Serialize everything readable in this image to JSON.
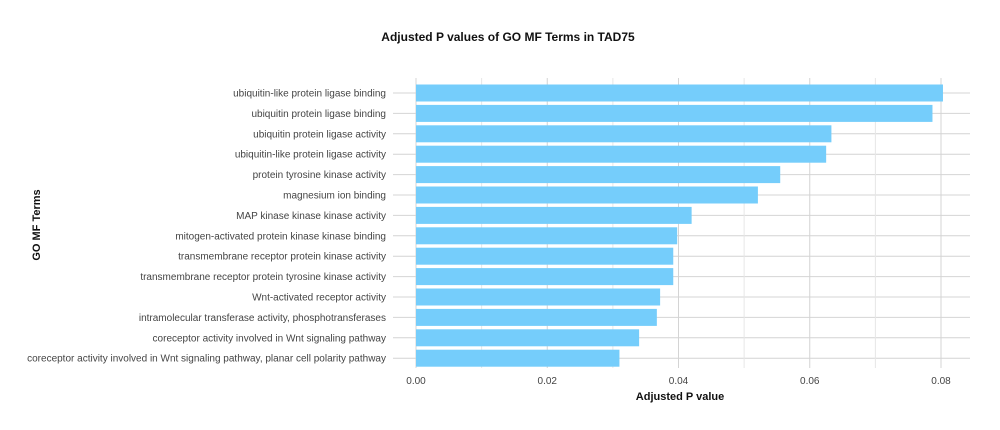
{
  "chart_data": {
    "type": "bar",
    "orientation": "horizontal",
    "title": "Adjusted P values of GO MF Terms in TAD75",
    "xlabel": "Adjusted P value",
    "ylabel": "GO MF Terms",
    "xlim": [
      0,
      0.084
    ],
    "xticks": [
      0,
      0.02,
      0.04,
      0.06,
      0.08
    ],
    "xtick_labels": [
      "0.00",
      "0.02",
      "0.04",
      "0.06",
      "0.08"
    ],
    "grid": true,
    "bar_color": "#75cdfb",
    "categories": [
      "ubiquitin-like protein ligase binding",
      "ubiquitin protein ligase binding",
      "ubiquitin protein ligase activity",
      "ubiquitin-like protein ligase activity",
      "protein tyrosine kinase activity",
      "magnesium ion binding",
      "MAP kinase kinase kinase activity",
      "mitogen-activated protein kinase kinase binding",
      "transmembrane receptor protein kinase activity",
      "transmembrane receptor protein tyrosine kinase activity",
      "Wnt-activated receptor activity",
      "intramolecular transferase activity, phosphotransferases",
      "coreceptor activity involved in Wnt signaling pathway",
      "coreceptor activity involved in Wnt signaling pathway, planar cell polarity pathway"
    ],
    "values": [
      0.0803,
      0.0787,
      0.0633,
      0.0625,
      0.0555,
      0.0521,
      0.042,
      0.0398,
      0.0392,
      0.0392,
      0.0372,
      0.0367,
      0.034,
      0.031
    ]
  }
}
